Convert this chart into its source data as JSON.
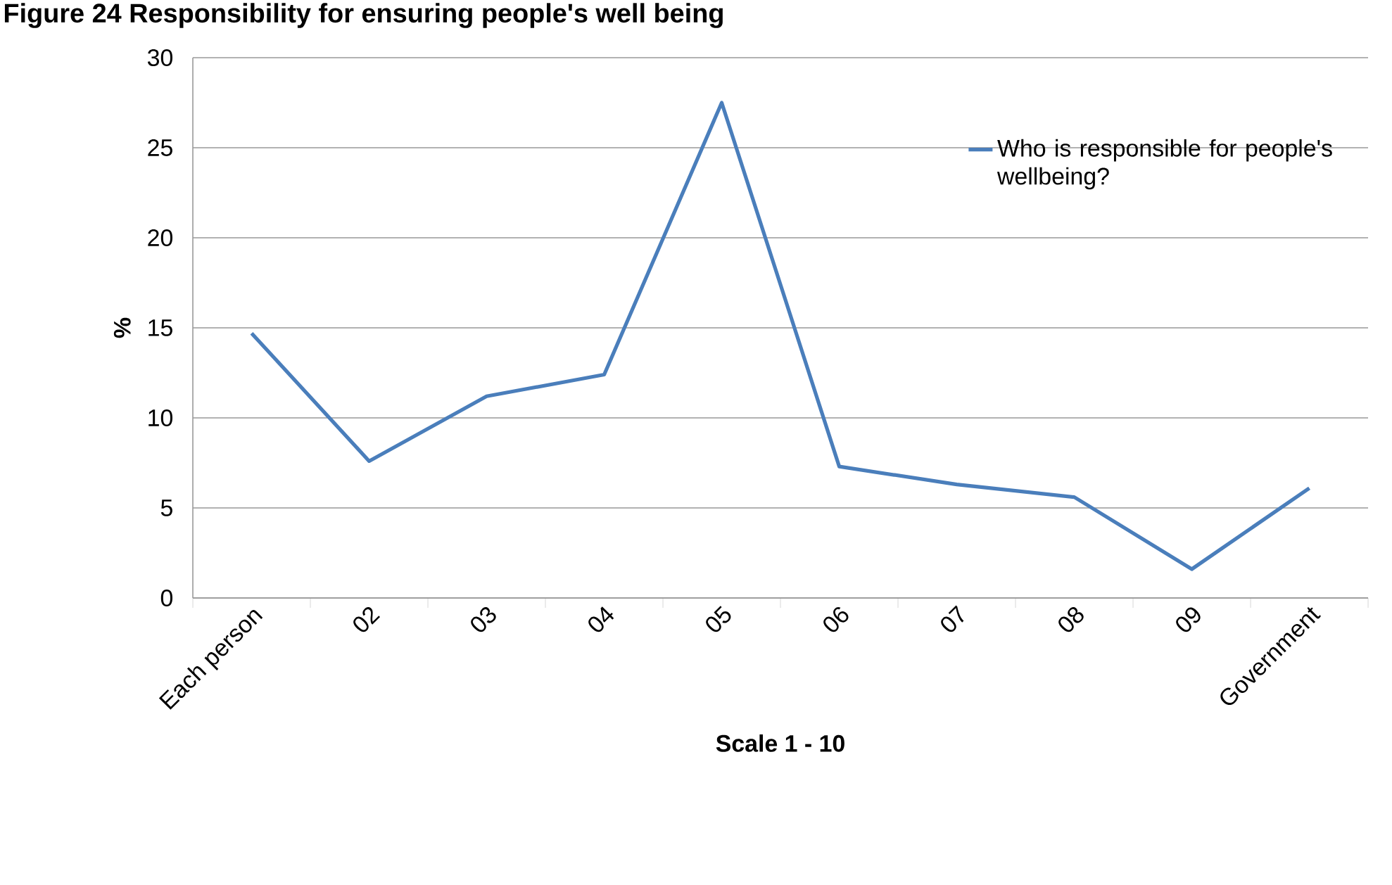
{
  "chart_data": {
    "type": "line",
    "title": "Figure 24 Responsibility for ensuring people's well being",
    "xlabel": "Scale 1 - 10",
    "ylabel": "%",
    "categories": [
      "Each person",
      "02",
      "03",
      "04",
      "05",
      "06",
      "07",
      "08",
      "09",
      "Government"
    ],
    "series": [
      {
        "name": "Who is responsible for people's wellbeing?",
        "color": "#4a7ebb",
        "values": [
          14.7,
          7.6,
          11.2,
          12.4,
          27.5,
          7.3,
          6.3,
          5.6,
          1.6,
          6.1
        ]
      }
    ],
    "ylim": [
      0,
      30
    ],
    "yticks": [
      0,
      5,
      10,
      15,
      20,
      25,
      30
    ],
    "grid": "y",
    "legend": "top right"
  }
}
